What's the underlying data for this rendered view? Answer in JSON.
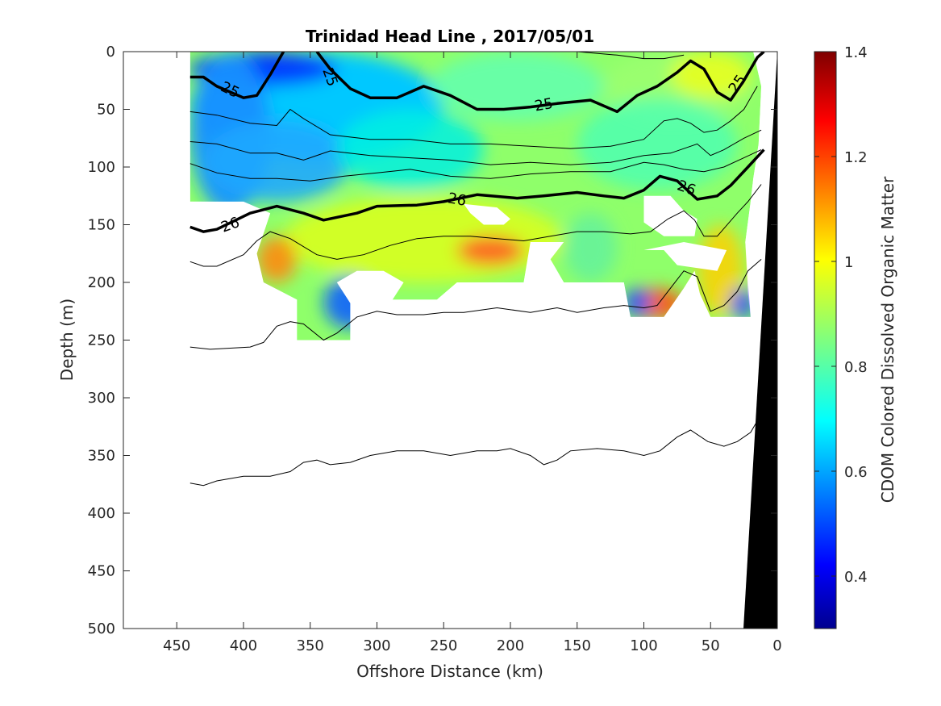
{
  "chart_data": {
    "type": "heatmap",
    "title": "Trinidad Head Line , 2017/05/01",
    "xlabel": "Offshore Distance (km)",
    "ylabel": "Depth (m)",
    "xlim": [
      490,
      0
    ],
    "ylim": [
      500,
      0
    ],
    "x_ticks": [
      "450",
      "400",
      "350",
      "300",
      "250",
      "200",
      "150",
      "100",
      "50",
      "0"
    ],
    "y_ticks": [
      "0",
      "50",
      "100",
      "150",
      "200",
      "250",
      "300",
      "350",
      "400",
      "450",
      "500"
    ],
    "colorbar": {
      "label": "CDOM Colored Dissolved Organic Matter",
      "range": [
        0.3,
        1.4
      ],
      "ticks": [
        "0.4",
        "0.6",
        "0.8",
        "1",
        "1.2",
        "1.4"
      ],
      "colormap": "jet"
    },
    "contour_labels": [
      {
        "text": "25",
        "x": 410,
        "y": 33
      },
      {
        "text": "25",
        "x": 335,
        "y": 22
      },
      {
        "text": "25",
        "x": 175,
        "y": 46
      },
      {
        "text": "25",
        "x": 30,
        "y": 28
      },
      {
        "text": "26",
        "x": 410,
        "y": 150
      },
      {
        "text": "26",
        "x": 240,
        "y": 128
      },
      {
        "text": "26",
        "x": 68,
        "y": 118
      }
    ],
    "thick_contours": [
      {
        "level": "25",
        "points": [
          [
            440,
            22
          ],
          [
            430,
            22
          ],
          [
            420,
            30
          ],
          [
            400,
            40
          ],
          [
            390,
            38
          ],
          [
            380,
            20
          ],
          [
            370,
            0
          ]
        ]
      },
      {
        "level": "25",
        "points": [
          [
            345,
            0
          ],
          [
            335,
            15
          ],
          [
            320,
            32
          ],
          [
            305,
            40
          ],
          [
            285,
            40
          ],
          [
            265,
            30
          ],
          [
            245,
            38
          ],
          [
            225,
            50
          ],
          [
            205,
            50
          ],
          [
            185,
            48
          ],
          [
            165,
            45
          ],
          [
            140,
            42
          ],
          [
            120,
            52
          ],
          [
            105,
            38
          ],
          [
            90,
            30
          ],
          [
            75,
            18
          ],
          [
            65,
            8
          ],
          [
            55,
            15
          ],
          [
            45,
            35
          ],
          [
            35,
            42
          ],
          [
            25,
            25
          ],
          [
            15,
            5
          ],
          [
            10,
            0
          ]
        ]
      },
      {
        "level": "26",
        "points": [
          [
            440,
            152
          ],
          [
            430,
            156
          ],
          [
            420,
            154
          ],
          [
            395,
            140
          ],
          [
            375,
            134
          ],
          [
            355,
            140
          ],
          [
            340,
            146
          ],
          [
            315,
            140
          ],
          [
            300,
            134
          ],
          [
            270,
            133
          ],
          [
            250,
            130
          ],
          [
            225,
            124
          ],
          [
            195,
            127
          ],
          [
            175,
            125
          ],
          [
            150,
            122
          ],
          [
            130,
            125
          ],
          [
            115,
            127
          ],
          [
            100,
            120
          ],
          [
            88,
            108
          ],
          [
            75,
            112
          ],
          [
            60,
            128
          ],
          [
            45,
            125
          ],
          [
            35,
            116
          ],
          [
            22,
            100
          ],
          [
            10,
            85
          ]
        ]
      }
    ],
    "thin_contours": [
      {
        "points": [
          [
            180,
            0
          ],
          [
            150,
            0
          ],
          [
            120,
            3
          ],
          [
            100,
            6
          ],
          [
            85,
            6
          ],
          [
            70,
            3
          ]
        ]
      },
      {
        "points": [
          [
            440,
            52
          ],
          [
            420,
            55
          ],
          [
            395,
            62
          ],
          [
            375,
            64
          ],
          [
            365,
            50
          ],
          [
            355,
            58
          ],
          [
            335,
            72
          ],
          [
            305,
            76
          ],
          [
            275,
            76
          ],
          [
            245,
            80
          ],
          [
            215,
            80
          ],
          [
            185,
            82
          ],
          [
            155,
            84
          ],
          [
            125,
            82
          ],
          [
            100,
            76
          ],
          [
            85,
            60
          ],
          [
            75,
            58
          ],
          [
            65,
            62
          ],
          [
            55,
            70
          ],
          [
            45,
            68
          ],
          [
            35,
            60
          ],
          [
            25,
            50
          ],
          [
            15,
            30
          ]
        ]
      },
      {
        "points": [
          [
            440,
            78
          ],
          [
            420,
            80
          ],
          [
            395,
            88
          ],
          [
            375,
            88
          ],
          [
            355,
            94
          ],
          [
            335,
            86
          ],
          [
            305,
            90
          ],
          [
            275,
            92
          ],
          [
            245,
            94
          ],
          [
            215,
            98
          ],
          [
            185,
            96
          ],
          [
            155,
            98
          ],
          [
            125,
            96
          ],
          [
            100,
            90
          ],
          [
            80,
            88
          ],
          [
            60,
            80
          ],
          [
            50,
            90
          ],
          [
            40,
            85
          ],
          [
            25,
            75
          ],
          [
            12,
            68
          ]
        ]
      },
      {
        "points": [
          [
            440,
            97
          ],
          [
            420,
            105
          ],
          [
            395,
            110
          ],
          [
            375,
            110
          ],
          [
            350,
            112
          ],
          [
            325,
            108
          ],
          [
            300,
            105
          ],
          [
            275,
            102
          ],
          [
            245,
            108
          ],
          [
            215,
            110
          ],
          [
            185,
            106
          ],
          [
            155,
            104
          ],
          [
            125,
            104
          ],
          [
            100,
            96
          ],
          [
            85,
            98
          ],
          [
            70,
            102
          ],
          [
            55,
            104
          ],
          [
            40,
            100
          ],
          [
            25,
            92
          ],
          [
            12,
            85
          ]
        ]
      },
      {
        "points": [
          [
            440,
            182
          ],
          [
            430,
            186
          ],
          [
            420,
            186
          ],
          [
            400,
            176
          ],
          [
            390,
            164
          ],
          [
            380,
            156
          ],
          [
            365,
            162
          ],
          [
            345,
            176
          ],
          [
            330,
            180
          ],
          [
            310,
            176
          ],
          [
            290,
            168
          ],
          [
            270,
            162
          ],
          [
            250,
            160
          ],
          [
            230,
            160
          ],
          [
            210,
            162
          ],
          [
            190,
            164
          ],
          [
            170,
            160
          ],
          [
            150,
            156
          ],
          [
            130,
            156
          ],
          [
            110,
            158
          ],
          [
            95,
            156
          ],
          [
            82,
            145
          ],
          [
            70,
            138
          ],
          [
            62,
            146
          ],
          [
            55,
            160
          ],
          [
            45,
            160
          ],
          [
            30,
            140
          ],
          [
            22,
            130
          ],
          [
            12,
            115
          ]
        ]
      },
      {
        "points": [
          [
            440,
            256
          ],
          [
            425,
            258
          ],
          [
            395,
            256
          ],
          [
            385,
            252
          ],
          [
            375,
            238
          ],
          [
            365,
            234
          ],
          [
            355,
            236
          ],
          [
            340,
            250
          ],
          [
            330,
            244
          ],
          [
            315,
            230
          ],
          [
            300,
            225
          ],
          [
            285,
            228
          ],
          [
            265,
            228
          ],
          [
            250,
            226
          ],
          [
            235,
            226
          ],
          [
            210,
            222
          ],
          [
            185,
            226
          ],
          [
            165,
            222
          ],
          [
            150,
            226
          ],
          [
            130,
            222
          ],
          [
            115,
            220
          ],
          [
            100,
            222
          ],
          [
            90,
            220
          ],
          [
            80,
            205
          ],
          [
            70,
            190
          ],
          [
            60,
            195
          ],
          [
            50,
            225
          ],
          [
            40,
            220
          ],
          [
            30,
            208
          ],
          [
            22,
            190
          ],
          [
            12,
            180
          ]
        ]
      },
      {
        "points": [
          [
            440,
            374
          ],
          [
            430,
            376
          ],
          [
            420,
            372
          ],
          [
            400,
            368
          ],
          [
            380,
            368
          ],
          [
            365,
            364
          ],
          [
            355,
            356
          ],
          [
            345,
            354
          ],
          [
            335,
            358
          ],
          [
            320,
            356
          ],
          [
            305,
            350
          ],
          [
            285,
            346
          ],
          [
            265,
            346
          ],
          [
            245,
            350
          ],
          [
            225,
            346
          ],
          [
            210,
            346
          ],
          [
            200,
            344
          ],
          [
            185,
            350
          ],
          [
            175,
            358
          ],
          [
            165,
            354
          ],
          [
            155,
            346
          ],
          [
            135,
            344
          ],
          [
            115,
            346
          ],
          [
            100,
            350
          ],
          [
            88,
            346
          ],
          [
            75,
            334
          ],
          [
            65,
            328
          ],
          [
            52,
            338
          ],
          [
            40,
            342
          ],
          [
            30,
            338
          ],
          [
            20,
            330
          ],
          [
            15,
            320
          ]
        ]
      }
    ]
  }
}
